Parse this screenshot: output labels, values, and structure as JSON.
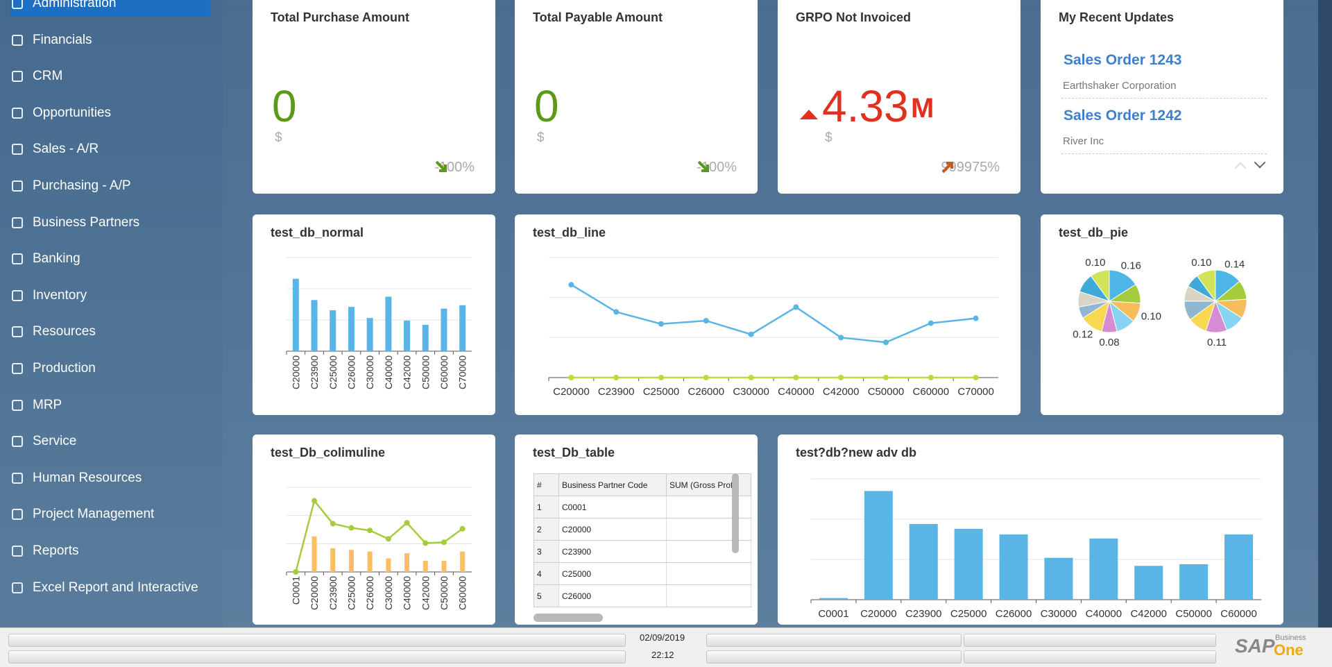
{
  "sidebar": {
    "items": [
      "Administration",
      "Financials",
      "CRM",
      "Opportunities",
      "Sales - A/R",
      "Purchasing - A/P",
      "Business Partners",
      "Banking",
      "Inventory",
      "Resources",
      "Production",
      "MRP",
      "Service",
      "Human Resources",
      "Project Management",
      "Reports",
      "Excel Report and Interactive"
    ]
  },
  "kpis": [
    {
      "title": "Total Purchase Amount",
      "value": "0",
      "currency": "$",
      "change": "-100%",
      "trend": "down",
      "color": "#5a9a17"
    },
    {
      "title": "Total Payable Amount",
      "value": "0",
      "currency": "$",
      "change": "-100%",
      "trend": "down",
      "color": "#5a9a17"
    },
    {
      "title": "GRPO Not Invoiced",
      "value": "4.33",
      "unit": "M",
      "currency": "$",
      "change": "999975%",
      "trend": "up",
      "color": "#e0301e"
    }
  ],
  "recent_updates": {
    "title": "My Recent Updates",
    "items": [
      {
        "title": "Sales Order 1243",
        "subtitle": "Earthshaker Corporation"
      },
      {
        "title": "Sales Order 1242",
        "subtitle": "River Inc"
      }
    ]
  },
  "chart_data": [
    {
      "type": "bar",
      "title": "test_db_normal",
      "categories": [
        "C20000",
        "C23900",
        "C25000",
        "C26000",
        "C30000",
        "C40000",
        "C42000",
        "C50000",
        "C60000",
        "C70000"
      ],
      "values": [
        85,
        60,
        48,
        52,
        39,
        64,
        36,
        31,
        50,
        54
      ],
      "color": "#5ab4e5",
      "ylim": [
        0,
        110
      ],
      "grid": true
    },
    {
      "type": "line",
      "title": "test_db_line",
      "categories": [
        "C20000",
        "C23900",
        "C25000",
        "C26000",
        "C30000",
        "C40000",
        "C42000",
        "C50000",
        "C60000",
        "C70000"
      ],
      "series": [
        {
          "color": "#5ab4e5",
          "values": [
            116,
            82,
            67,
            71,
            54,
            88,
            50,
            44,
            68,
            74
          ]
        },
        {
          "color": "#c5d63c",
          "values": [
            0,
            0,
            0,
            0,
            0,
            0,
            0,
            0,
            0,
            0
          ]
        }
      ],
      "ylim": [
        0,
        150
      ],
      "grid": true
    },
    {
      "type": "pie",
      "title": "test_db_pie",
      "colors": [
        "#4db6e6",
        "#a4cc3c",
        "#f8bd5b",
        "#86d3f2",
        "#d88bd2",
        "#f8d850",
        "#8fb7cf",
        "#d9d4c5",
        "#3fa9d8",
        "#d2e35a"
      ],
      "series": [
        {
          "values": [
            0.16,
            0.1,
            0.1,
            0.1,
            0.08,
            0.12,
            0.06,
            0.08,
            0.1,
            0.1
          ],
          "value_labels": [
            "0.16",
            null,
            "0.10",
            null,
            "0.08",
            "0.12",
            null,
            null,
            null,
            "0.10"
          ]
        },
        {
          "values": [
            0.14,
            0.1,
            0.1,
            0.1,
            0.11,
            0.1,
            0.1,
            0.08,
            0.07,
            0.1
          ],
          "value_labels": [
            "0.14",
            null,
            null,
            null,
            "0.11",
            null,
            null,
            null,
            null,
            "0.10"
          ]
        }
      ]
    },
    {
      "type": "combo",
      "title": "test_Db_colimuline",
      "categories": [
        "C0001",
        "C20000",
        "C23900",
        "C25000",
        "C26000",
        "C30000",
        "C40000",
        "C42000",
        "C50000",
        "C60000"
      ],
      "series": [
        {
          "type": "bar",
          "color": "#fbbf62",
          "values": [
            0,
            42,
            28,
            26,
            24,
            16,
            22,
            13,
            13,
            24
          ]
        },
        {
          "type": "line",
          "color": "#a6cc3c",
          "values": [
            0,
            84,
            57,
            52,
            49,
            39,
            58,
            34,
            35,
            51
          ]
        }
      ],
      "ylim": [
        0,
        100
      ],
      "grid": true
    },
    {
      "type": "bar",
      "title": "test?db?new adv db",
      "categories": [
        "C0001",
        "C20000",
        "C23900",
        "C25000",
        "C26000",
        "C30000",
        "C40000",
        "C42000",
        "C50000",
        "C60000"
      ],
      "values": [
        2,
        135,
        94,
        88,
        81,
        52,
        76,
        42,
        44,
        81
      ],
      "color": "#5ab4e5",
      "ylim": [
        0,
        150
      ],
      "grid": true
    }
  ],
  "table": {
    "title": "test_Db_table",
    "headers": [
      "#",
      "Business Partner Code",
      "SUM (Gross Profit"
    ],
    "rows": [
      [
        "1",
        "C0001"
      ],
      [
        "2",
        "C20000"
      ],
      [
        "3",
        "C23900"
      ],
      [
        "4",
        "C25000"
      ],
      [
        "5",
        "C26000"
      ]
    ]
  },
  "status_bar": {
    "date": "02/09/2019",
    "time": "22:12"
  },
  "logo": {
    "brand": "SAP",
    "product_top": "Business",
    "product_bottom": "One"
  }
}
